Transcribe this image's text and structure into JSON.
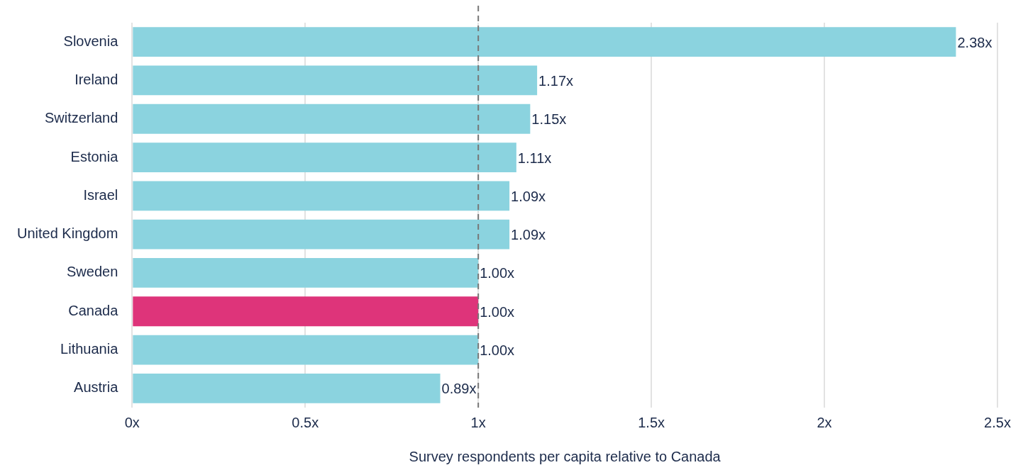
{
  "chart_data": {
    "type": "bar",
    "orientation": "horizontal",
    "xlabel": "Survey respondents per capita relative to Canada",
    "categories": [
      "Slovenia",
      "Ireland",
      "Switzerland",
      "Estonia",
      "Israel",
      "United Kingdom",
      "Sweden",
      "Canada",
      "Lithuania",
      "Austria"
    ],
    "values": [
      2.38,
      1.17,
      1.15,
      1.11,
      1.09,
      1.09,
      1.0,
      1.0,
      1.0,
      0.89
    ],
    "colors": [
      "#8bd3df",
      "#8bd3df",
      "#8bd3df",
      "#8bd3df",
      "#8bd3df",
      "#8bd3df",
      "#8bd3df",
      "#de347a",
      "#8bd3df",
      "#8bd3df"
    ],
    "value_labels": [
      "2.38x",
      "1.17x",
      "1.15x",
      "1.11x",
      "1.09x",
      "1.09x",
      "1.00x",
      "1.00x",
      "1.00x",
      "0.89x"
    ],
    "xlim": [
      0,
      2.5
    ],
    "xticks": [
      {
        "value": 0,
        "label": "0x"
      },
      {
        "value": 0.5,
        "label": "0.5x"
      },
      {
        "value": 1,
        "label": "1x"
      },
      {
        "value": 1.5,
        "label": "1.5x"
      },
      {
        "value": 2,
        "label": "2x"
      },
      {
        "value": 2.5,
        "label": "2.5x"
      }
    ],
    "grid": "x",
    "legend": false,
    "ref_lines": [
      {
        "axis": "x",
        "value": 1,
        "color": "#777777",
        "line_style": "dashed"
      }
    ]
  }
}
